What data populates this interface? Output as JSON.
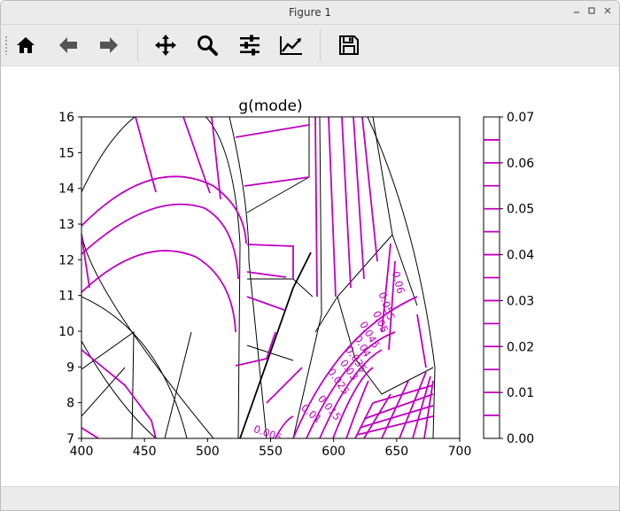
{
  "window": {
    "title": "Figure 1",
    "controls": [
      "minimize",
      "maximize",
      "close"
    ]
  },
  "toolbar": {
    "buttons": [
      {
        "name": "home",
        "icon": "home-icon"
      },
      {
        "name": "back",
        "icon": "arrow-left-icon"
      },
      {
        "name": "forward",
        "icon": "arrow-right-icon"
      },
      {
        "name": "pan",
        "icon": "move-icon"
      },
      {
        "name": "zoom",
        "icon": "magnifier-icon"
      },
      {
        "name": "configure-subplots",
        "icon": "sliders-icon"
      },
      {
        "name": "edit-axis",
        "icon": "line-chart-icon"
      },
      {
        "name": "save",
        "icon": "floppy-disk-icon"
      }
    ]
  },
  "colors": {
    "contour": "#c000c0",
    "boundary": "#000000",
    "window_chrome": "#ebebeb"
  },
  "chart_data": {
    "type": "contour",
    "title": "g(mode)",
    "xlim": [
      400,
      700
    ],
    "ylim": [
      7,
      16
    ],
    "x_ticks": [
      400,
      450,
      500,
      550,
      600,
      650,
      700
    ],
    "y_ticks": [
      7,
      8,
      9,
      10,
      11,
      12,
      13,
      14,
      15,
      16
    ],
    "colorbar": {
      "min": 0.0,
      "max": 0.07,
      "tick_labels": [
        "0.00",
        "0.01",
        "0.02",
        "0.03",
        "0.04",
        "0.05",
        "0.06",
        "0.07"
      ],
      "level_step": 0.005
    },
    "contour_labels": [
      "0.005",
      "0.01",
      "0.015",
      "0.025",
      "0.03",
      "0.035",
      "0.04",
      "0.045",
      "0.05",
      "0.055",
      "0.06"
    ],
    "grid": false
  }
}
